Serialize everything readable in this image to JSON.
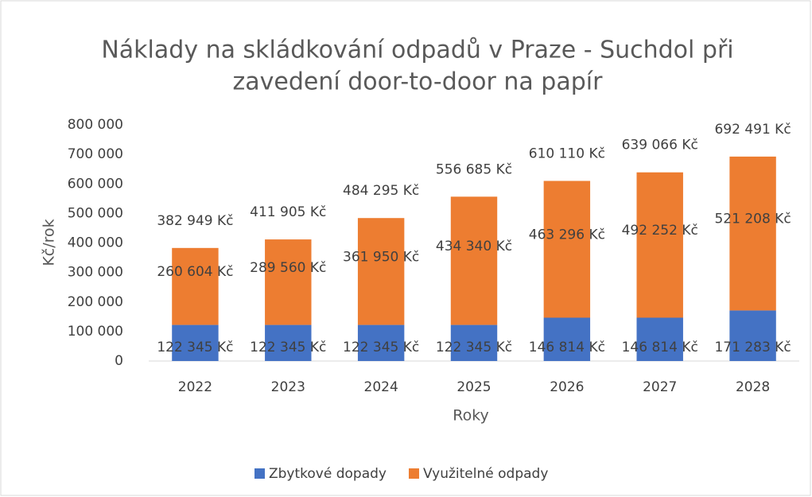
{
  "chart_data": {
    "type": "stacked_bar",
    "title": "Náklady na skládkování odpadů v Praze - Suchdol při zavedení door-to-door na papír",
    "x_label": "Roky",
    "y_label": "Kč/rok",
    "categories": [
      "2022",
      "2023",
      "2024",
      "2025",
      "2026",
      "2027",
      "2028"
    ],
    "series": [
      {
        "name": "Zbytkové dopady",
        "color": "#4472c4",
        "values": [
          122345,
          122345,
          122345,
          122345,
          146814,
          146814,
          171283
        ],
        "value_labels": [
          "122 345 Kč",
          "122 345 Kč",
          "122 345 Kč",
          "122 345 Kč",
          "146 814 Kč",
          "146 814 Kč",
          "171 283 Kč"
        ]
      },
      {
        "name": "Využitelné odpady",
        "color": "#ed7d31",
        "values": [
          260604,
          289560,
          361950,
          434340,
          463296,
          492252,
          521208
        ],
        "value_labels": [
          "260 604 Kč",
          "289 560 Kč",
          "361 950 Kč",
          "434 340 Kč",
          "463 296 Kč",
          "492 252 Kč",
          "521 208 Kč"
        ]
      }
    ],
    "total_labels": [
      "382 949 Kč",
      "411 905 Kč",
      "484 295 Kč",
      "556 685 Kč",
      "610 110 Kč",
      "639 066 Kč",
      "692 491 Kč"
    ],
    "ylim": [
      0,
      800000
    ],
    "yticks": [
      {
        "value": 0,
        "label": "0"
      },
      {
        "value": 100000,
        "label": "100 000"
      },
      {
        "value": 200000,
        "label": "200 000"
      },
      {
        "value": 300000,
        "label": "300 000"
      },
      {
        "value": 400000,
        "label": "400 000"
      },
      {
        "value": 500000,
        "label": "500 000"
      },
      {
        "value": 600000,
        "label": "600 000"
      },
      {
        "value": 700000,
        "label": "700 000"
      },
      {
        "value": 800000,
        "label": "800 000"
      }
    ],
    "grid": false,
    "legend": "bottom"
  }
}
